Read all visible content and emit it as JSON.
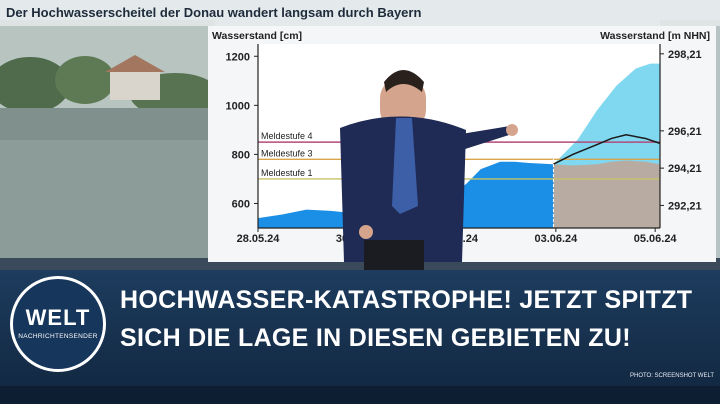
{
  "header": {
    "title": "Der Hochwasserscheitel der Donau wandert langsam durch Bayern"
  },
  "chart_data": {
    "type": "area",
    "ylabel_left": "Wasserstand [cm]",
    "ylabel_right": "Wasserstand [m NHN]",
    "y_left_ticks": [
      "600",
      "800",
      "1000",
      "1200"
    ],
    "y_right_ticks": [
      "292,21",
      "294,21",
      "296,21",
      "298,21"
    ],
    "ylim": [
      500,
      1250
    ],
    "x_ticks": [
      "28.05.24",
      "30.05.24",
      "01.06.24",
      "03.06.24",
      "05.06.24"
    ],
    "x_range_days": [
      0,
      8.3
    ],
    "thresholds": [
      {
        "name": "Meldestufe 4",
        "value": 850,
        "color": "#b24a7a"
      },
      {
        "name": "Meldestufe 3",
        "value": 780,
        "color": "#d9a54a"
      },
      {
        "name": "Meldestufe 1",
        "value": 700,
        "color": "#c8c26a"
      }
    ],
    "measured": {
      "x": [
        0,
        0.5,
        1.0,
        1.5,
        2.0,
        2.5,
        3.0,
        3.5,
        3.8,
        4.0,
        4.3,
        4.6,
        5.0,
        5.3,
        5.6,
        5.9,
        6.1
      ],
      "y": [
        540,
        555,
        575,
        570,
        560,
        548,
        560,
        595,
        615,
        640,
        680,
        740,
        770,
        770,
        765,
        762,
        760
      ]
    },
    "forecast_median": {
      "x": [
        6.1,
        6.5,
        7.0,
        7.3,
        7.6,
        8.0,
        8.3
      ],
      "y": [
        760,
        800,
        840,
        865,
        880,
        865,
        845
      ]
    },
    "forecast_lower": {
      "x": [
        6.1,
        6.5,
        7.0,
        7.3,
        7.6,
        8.0,
        8.3
      ],
      "y": [
        760,
        755,
        760,
        770,
        775,
        770,
        760
      ]
    },
    "forecast_upper": {
      "x": [
        6.1,
        6.6,
        7.0,
        7.4,
        7.8,
        8.1,
        8.3
      ],
      "y": [
        760,
        860,
        980,
        1080,
        1150,
        1170,
        1170
      ]
    },
    "colors": {
      "measured": "#1b8fe6",
      "forecast_upper": "#7fd8ef",
      "forecast_lower": "#b8aca2",
      "median": "#1a1a1a"
    }
  },
  "overlay": {
    "headline_line1": "HOCHWASSER-KATASTROPHE! JETZT SPITZT",
    "headline_line2": "SICH DIE LAGE IN DIESEN GEBIETEN ZU!",
    "logo_main": "WELT",
    "logo_sub": "NACHRICHTENSENDER",
    "credit": "PHOTO: SCREENSHOT WELT"
  }
}
